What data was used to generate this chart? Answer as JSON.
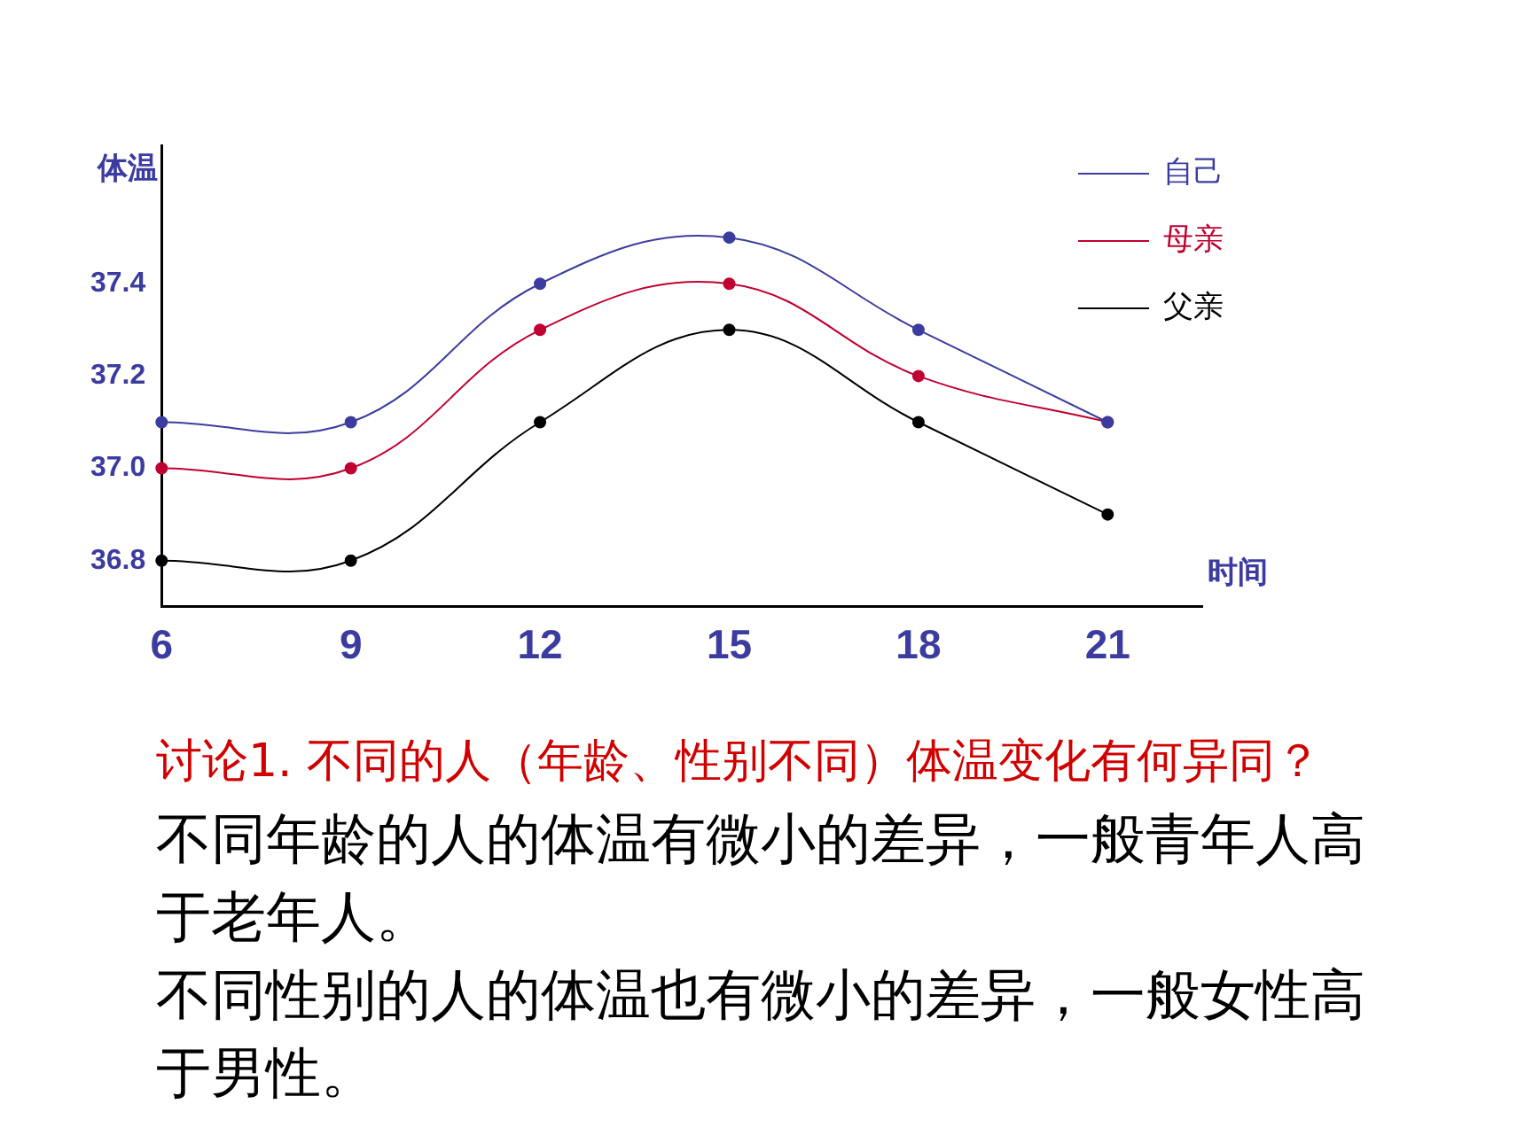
{
  "chart_data": {
    "type": "line",
    "xlabel": "时间",
    "ylabel": "体温",
    "x": [
      6,
      9,
      12,
      15,
      18,
      21
    ],
    "series": [
      {
        "name": "自己",
        "color": "#3c3ca0",
        "values": [
          37.1,
          37.1,
          37.4,
          37.5,
          37.3,
          37.1
        ]
      },
      {
        "name": "母亲",
        "color": "#c00030",
        "values": [
          37.0,
          37.0,
          37.3,
          37.4,
          37.2,
          37.1
        ]
      },
      {
        "name": "父亲",
        "color": "#000000",
        "values": [
          36.8,
          36.8,
          37.1,
          37.3,
          37.1,
          36.9
        ]
      }
    ],
    "xlim": [
      6,
      22.5
    ],
    "xticks": [
      6,
      9,
      12,
      15,
      18,
      21
    ],
    "ylim": [
      36.7,
      37.7
    ],
    "yticks": [
      {
        "value": 36.8,
        "label": "36.8"
      },
      {
        "value": 37.0,
        "label": "37.0"
      },
      {
        "value": 37.2,
        "label": "37.2"
      },
      {
        "value": 37.4,
        "label": "37.4"
      }
    ],
    "grid": false,
    "legend": "top right",
    "marker": "circle",
    "line_style": "solid",
    "annotations": [
      "讨论1. 不同的人（年龄、性别不同）体温变化有何异同？",
      "不同年龄的人的体温有微小的差异，一般青年人高于老年人。",
      "不同性别的人的体温也有微小的差异，一般女性高于男性。"
    ]
  }
}
